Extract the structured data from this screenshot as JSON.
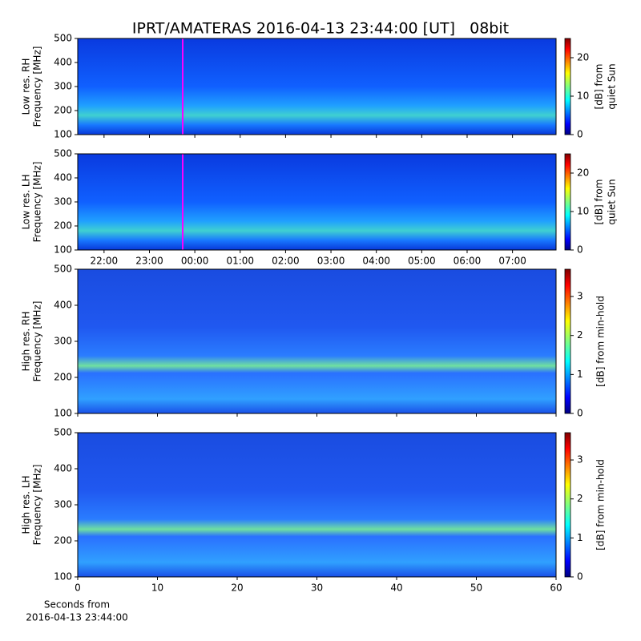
{
  "chart_data": [
    {
      "type": "spectrogram",
      "title": "IPRT/AMATERAS 2016-04-13 23:44:00 [UT]   08bit",
      "ylabel": [
        "Low res. RH",
        "Frequency [MHz]"
      ],
      "ylim": [
        100,
        500
      ],
      "yticks": [
        100,
        200,
        300,
        400,
        500
      ],
      "xlim": [
        21.42,
        31.96
      ],
      "marker_x": 23.733,
      "marker_color": "#ff00ff",
      "colorbar": {
        "label": [
          "[dB] from",
          "quiet Sun"
        ],
        "lim": [
          0,
          25
        ],
        "ticks": [
          0,
          10,
          20
        ],
        "cmap": "jet"
      }
    },
    {
      "type": "spectrogram",
      "ylabel": [
        "Low res. LH",
        "Frequency [MHz]"
      ],
      "ylim": [
        100,
        500
      ],
      "yticks": [
        100,
        200,
        300,
        400,
        500
      ],
      "xlim": [
        21.42,
        31.96
      ],
      "marker_x": 23.733,
      "marker_color": "#ff00ff",
      "xticks": [
        {
          "value": 22,
          "label": "22:00"
        },
        {
          "value": 23,
          "label": "23:00"
        },
        {
          "value": 24,
          "label": "00:00"
        },
        {
          "value": 25,
          "label": "01:00"
        },
        {
          "value": 26,
          "label": "02:00"
        },
        {
          "value": 27,
          "label": "03:00"
        },
        {
          "value": 28,
          "label": "04:00"
        },
        {
          "value": 29,
          "label": "05:00"
        },
        {
          "value": 30,
          "label": "06:00"
        },
        {
          "value": 31,
          "label": "07:00"
        }
      ],
      "colorbar": {
        "label": [
          "[dB] from",
          "quiet Sun"
        ],
        "lim": [
          0,
          25
        ],
        "ticks": [
          0,
          10,
          20
        ],
        "cmap": "jet"
      }
    },
    {
      "type": "spectrogram",
      "ylabel": [
        "High res. RH",
        "Frequency [MHz]"
      ],
      "ylim": [
        100,
        500
      ],
      "yticks": [
        100,
        200,
        300,
        400,
        500
      ],
      "xlim": [
        0,
        60
      ],
      "colorbar": {
        "label": [
          "[dB] from min-hold"
        ],
        "lim": [
          0,
          3.7
        ],
        "ticks": [
          0,
          1,
          2,
          3
        ],
        "cmap": "jet"
      }
    },
    {
      "type": "spectrogram",
      "ylabel": [
        "High res. LH",
        "Frequency [MHz]"
      ],
      "ylim": [
        100,
        500
      ],
      "yticks": [
        100,
        200,
        300,
        400,
        500
      ],
      "xlim": [
        0,
        60
      ],
      "xticks": [
        0,
        10,
        20,
        30,
        40,
        50,
        60
      ],
      "xlabel": [
        "Seconds from",
        "2016-04-13 23:44:00"
      ],
      "colorbar": {
        "label": [
          "[dB] from min-hold"
        ],
        "lim": [
          0,
          3.7
        ],
        "ticks": [
          0,
          1,
          2,
          3
        ],
        "cmap": "jet"
      }
    }
  ]
}
